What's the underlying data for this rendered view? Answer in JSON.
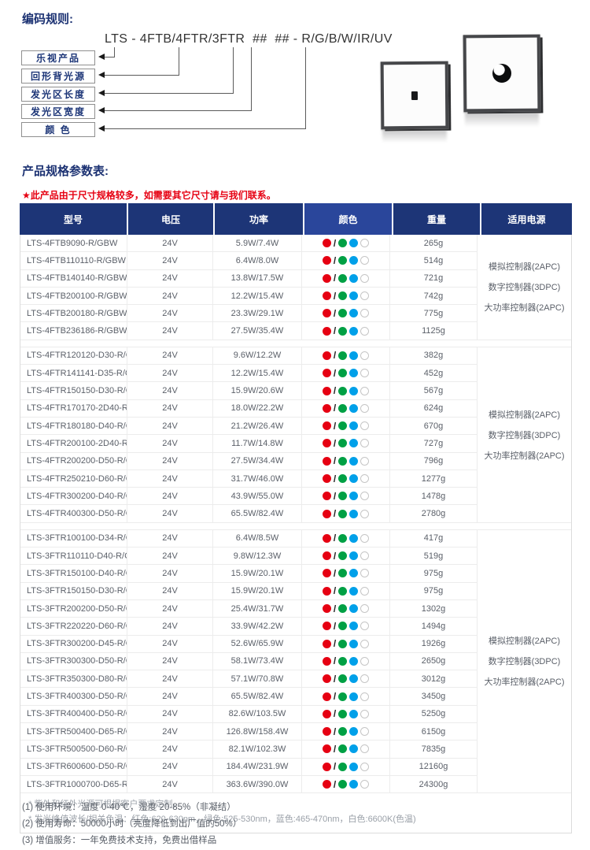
{
  "colors": {
    "navy": "#1d3577",
    "navy_light": "#2a469b",
    "red_dot": "#e60012",
    "green_dot": "#00a044",
    "blue_dot": "#00a0e9",
    "white_dot_outline": "#c6c6c6",
    "warning_red": "#e60012"
  },
  "coding": {
    "title": "编码规则:",
    "code": "LTS - 4FTB/4FTR/3FTR  ##  ## - R/G/B/W/IR/UV",
    "labels": [
      "乐视产品",
      "回形背光源",
      "发光区长度",
      "发光区宽度",
      "颜 色"
    ]
  },
  "spec": {
    "title": "产品规格参数表:",
    "warning": "★此产品由于尺寸规格较多，如需要其它尺寸请与我们联系。",
    "headers": [
      "型号",
      "电压",
      "功率",
      "颜色",
      "重量",
      "适用电源"
    ],
    "power_supply": [
      "模拟控制器(2APC)",
      "数字控制器(3DPC)",
      "大功率控制器(2APC)"
    ],
    "color_dots": [
      {
        "name": "red-dot",
        "hex": "#e60012"
      },
      {
        "name": "slash",
        "text": "/"
      },
      {
        "name": "green-dot",
        "hex": "#00a044"
      },
      {
        "name": "blue-dot",
        "hex": "#00a0e9"
      },
      {
        "name": "white-dot",
        "hex": "#ffffff",
        "outline": "#c6c6c6"
      }
    ],
    "sections": [
      {
        "rows": [
          [
            "LTS-4FTB9090-R/GBW",
            "24V",
            "5.9W/7.4W",
            "265g"
          ],
          [
            "LTS-4FTB110110-R/GBW",
            "24V",
            "6.4W/8.0W",
            "514g"
          ],
          [
            "LTS-4FTB140140-R/GBW",
            "24V",
            "13.8W/17.5W",
            "721g"
          ],
          [
            "LTS-4FTB200100-R/GBW",
            "24V",
            "12.2W/15.4W",
            "742g"
          ],
          [
            "LTS-4FTB200180-R/GBW",
            "24V",
            "23.3W/29.1W",
            "775g"
          ],
          [
            "LTS-4FTB236186-R/GBW",
            "24V",
            "27.5W/35.4W",
            "1125g"
          ]
        ]
      },
      {
        "rows": [
          [
            "LTS-4FTR120120-D30-R/GBW",
            "24V",
            "9.6W/12.2W",
            "382g"
          ],
          [
            "LTS-4FTR141141-D35-R/GBW",
            "24V",
            "12.2W/15.4W",
            "452g"
          ],
          [
            "LTS-4FTR150150-D30-R/GBW",
            "24V",
            "15.9W/20.6W",
            "567g"
          ],
          [
            "LTS-4FTR170170-2D40-R/GBW",
            "24V",
            "18.0W/22.2W",
            "624g"
          ],
          [
            "LTS-4FTR180180-D40-R/GBW",
            "24V",
            "21.2W/26.4W",
            "670g"
          ],
          [
            "LTS-4FTR200100-2D40-R/GBW",
            "24V",
            "11.7W/14.8W",
            "727g"
          ],
          [
            "LTS-4FTR200200-D50-R/GBW",
            "24V",
            "27.5W/34.4W",
            "796g"
          ],
          [
            "LTS-4FTR250210-D60-R/GBW",
            "24V",
            "31.7W/46.0W",
            "1277g"
          ],
          [
            "LTS-4FTR300200-D40-R/GBW",
            "24V",
            "43.9W/55.0W",
            "1478g"
          ],
          [
            "LTS-4FTR400300-D50-R/GBW",
            "24V",
            "65.5W/82.4W",
            "2780g"
          ]
        ]
      },
      {
        "rows": [
          [
            "LTS-3FTR100100-D34-R/GBW",
            "24V",
            "6.4W/8.5W",
            "417g"
          ],
          [
            "LTS-3FTR110110-D40-R/GBW",
            "24V",
            "9.8W/12.3W",
            "519g"
          ],
          [
            "LTS-3FTR150100-D40-R/GBW",
            "24V",
            "15.9W/20.1W",
            "975g"
          ],
          [
            "LTS-3FTR150150-D30-R/GBW",
            "24V",
            "15.9W/20.1W",
            "975g"
          ],
          [
            "LTS-3FTR200200-D50-R/GBW",
            "24V",
            "25.4W/31.7W",
            "1302g"
          ],
          [
            "LTS-3FTR220220-D60-R/GBW",
            "24V",
            "33.9W/42.2W",
            "1494g"
          ],
          [
            "LTS-3FTR300200-D45-R/GBW",
            "24V",
            "52.6W/65.9W",
            "1926g"
          ],
          [
            "LTS-3FTR300300-D50-R/GBW",
            "24V",
            "58.1W/73.4W",
            "2650g"
          ],
          [
            "LTS-3FTR350300-D80-R/GBW",
            "24V",
            "57.1W/70.8W",
            "3012g"
          ],
          [
            "LTS-3FTR400300-D50-R/GBW",
            "24V",
            "65.5W/82.4W",
            "3450g"
          ],
          [
            "LTS-3FTR400400-D50-R/GBW",
            "24V",
            "82.6W/103.5W",
            "5250g"
          ],
          [
            "LTS-3FTR500400-D65-R/GBW",
            "24V",
            "126.8W/158.4W",
            "6150g"
          ],
          [
            "LTS-3FTR500500-D60-R/GBW",
            "24V",
            "82.1W/102.3W",
            "7835g"
          ],
          [
            "LTS-3FTR600600-D50-R/GBW",
            "24V",
            "184.4W/231.9W",
            "12160g"
          ],
          [
            "LTS-3FTR1000700-D65-R/GBW",
            "24V",
            "363.6W/390.0W",
            "24300g"
          ]
        ]
      }
    ],
    "table_notes": [
      "* 紫外和红外光源可根据客户要求定制。",
      "* 发光峰值波长/相关色温：红色:620-630nm，绿色:525-530nm，蓝色:465-470nm，白色:6600K(色温)"
    ]
  },
  "footnotes": [
    "(1) 使用环境：温度 0-40℃，湿度 20-85%（非凝结）",
    "(2) 使用寿命：50000小时（亮度降低到出厂值的50%）",
    "(3) 增值服务：一年免费技术支持，免费出借样品"
  ]
}
